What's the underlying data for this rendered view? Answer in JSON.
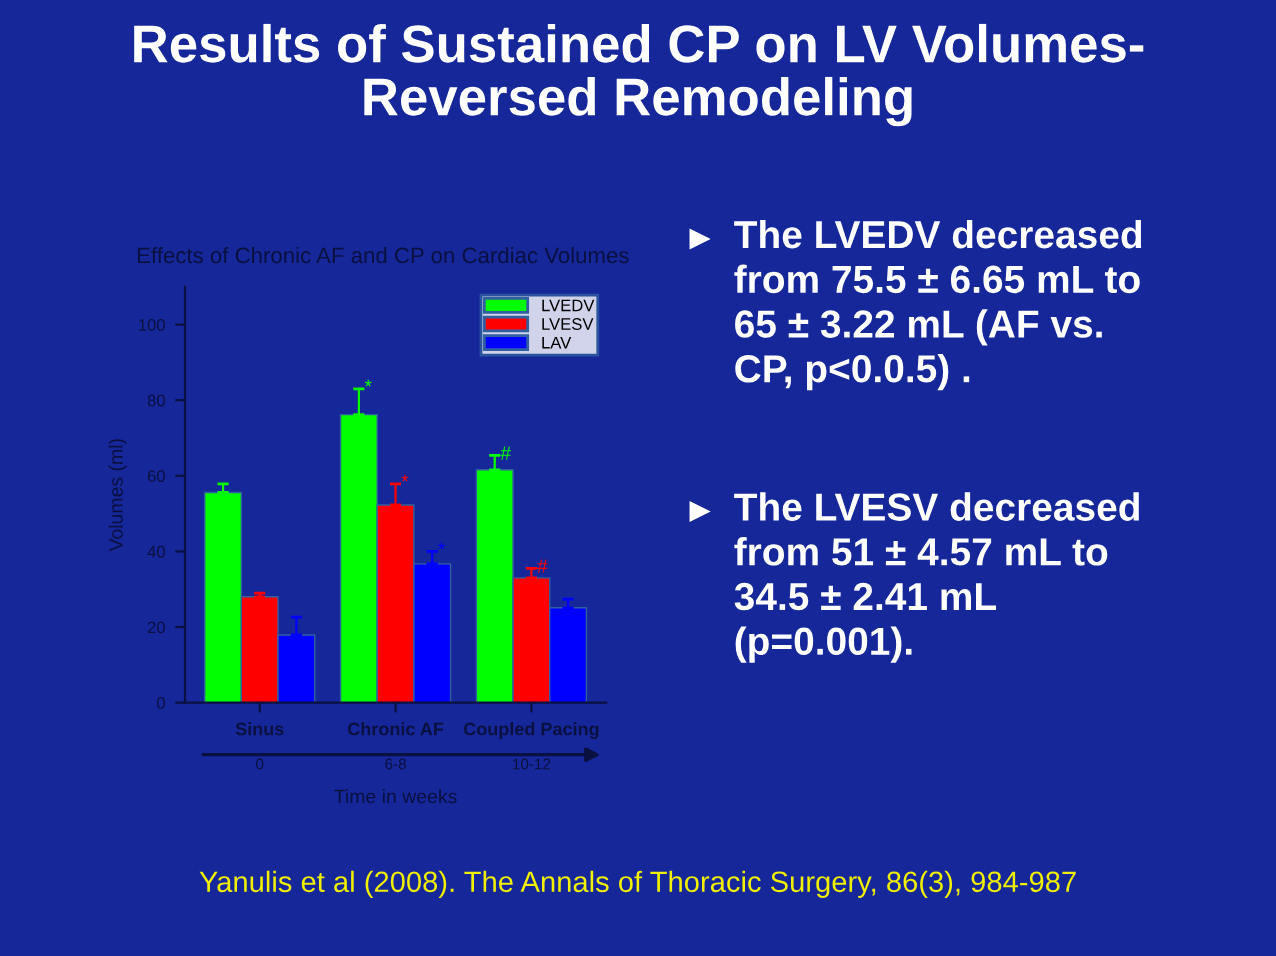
{
  "chart_data": {
    "type": "bar",
    "title": "Results of Sustained CP on LV Volumes-\nReversed Remodeling",
    "subtitle": "Effects of Chronic AF and CP on Cardiac Volumes",
    "categories": [
      "Sinus",
      "Chronic AF",
      "Coupled Pacing"
    ],
    "xlabel": "Time in weeks",
    "ylabel": "Volumes (ml)",
    "series": [
      {
        "name": "LVEDV",
        "color": "#00ff00",
        "values": [
          55.6,
          76.2,
          61.6
        ],
        "errors": [
          [
            55.6,
            57.9
          ],
          [
            76.2,
            83
          ],
          [
            61.6,
            65.4
          ]
        ],
        "value_labels": [
          null,
          "*",
          "#"
        ]
      },
      {
        "name": "LVESV",
        "color": "#ff0000",
        "values": [
          28,
          52.3,
          33
        ],
        "errors": [
          [
            28,
            29
          ],
          [
            52.3,
            57.9
          ],
          [
            33,
            35.5
          ]
        ],
        "value_labels": [
          null,
          "*",
          "#"
        ]
      },
      {
        "name": "LAV",
        "color": "#0000ff",
        "values": [
          17.9,
          36.7,
          25.1
        ],
        "errors": [
          [
            17.9,
            22.6
          ],
          [
            36.7,
            40
          ],
          [
            25.1,
            27.4
          ]
        ],
        "value_labels": [
          null,
          "*",
          null
        ]
      }
    ],
    "ylim": [
      0,
      110
    ],
    "yticks": [
      0,
      20,
      40,
      60,
      80,
      100
    ],
    "grid": false,
    "legend": "top right",
    "annotations": [
      "0",
      "6-8",
      "10-12",
      "The LVEDV decreased\nfrom 75.5 ± 6.65 mL to\n65 ± 3.22 mL (AF vs.\nCP, p<0.0.5) .",
      "The LVESV decreased\nfrom 51 ± 4.57 mL to\n34.5 ± 2.41 mL\n(p=0.001).",
      "Yanulis et al (2008). The Annals of Thoracic Surgery, 86(3), 984-987"
    ]
  }
}
